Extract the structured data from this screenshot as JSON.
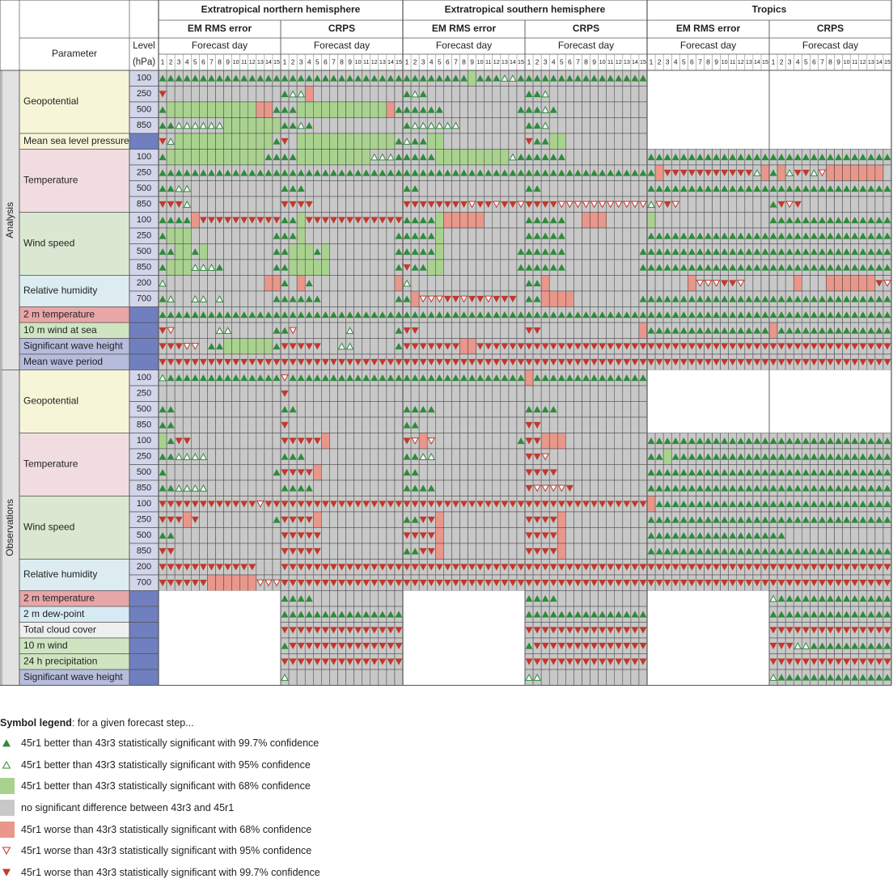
{
  "chart_data": {
    "type": "table",
    "title": "",
    "regions": [
      "Extratropical northern hemisphere",
      "Extratropical southern hemisphere",
      "Tropics"
    ],
    "scores": [
      "EM RMS error",
      "CRPS"
    ],
    "forecast_day_label": "Forecast day",
    "forecast_days": [
      "1",
      "2",
      "3",
      "4",
      "5",
      "6",
      "7",
      "8",
      "9",
      "10",
      "11",
      "12",
      "13",
      "14",
      "15"
    ],
    "param_header": "Parameter",
    "level_header": [
      "Level",
      "(hPa)"
    ],
    "sections": [
      {
        "name": "Analysis",
        "params": [
          {
            "name": "Geopotential",
            "levels": [
              "100",
              "250",
              "500",
              "850"
            ]
          },
          {
            "name": "Mean sea level pressure",
            "levels": [
              ""
            ]
          },
          {
            "name": "Temperature",
            "levels": [
              "100",
              "250",
              "500",
              "850"
            ]
          },
          {
            "name": "Wind speed",
            "levels": [
              "100",
              "250",
              "500",
              "850"
            ]
          },
          {
            "name": "Relative humidity",
            "levels": [
              "200",
              "700"
            ]
          },
          {
            "name": "2 m temperature",
            "levels": [
              ""
            ]
          },
          {
            "name": "10 m wind at sea",
            "levels": [
              ""
            ]
          },
          {
            "name": "Significant wave height",
            "levels": [
              ""
            ]
          },
          {
            "name": "Mean wave period",
            "levels": [
              ""
            ]
          }
        ]
      },
      {
        "name": "Observations",
        "params": [
          {
            "name": "Geopotential",
            "levels": [
              "100",
              "250",
              "500",
              "850"
            ]
          },
          {
            "name": "Temperature",
            "levels": [
              "100",
              "250",
              "500",
              "850"
            ]
          },
          {
            "name": "Wind speed",
            "levels": [
              "100",
              "250",
              "500",
              "850"
            ]
          },
          {
            "name": "Relative humidity",
            "levels": [
              "200",
              "700"
            ]
          },
          {
            "name": "2 m temperature",
            "levels": [
              ""
            ]
          },
          {
            "name": "2 m dew-point",
            "levels": [
              ""
            ]
          },
          {
            "name": "Total cloud cover",
            "levels": [
              ""
            ]
          },
          {
            "name": "10 m wind",
            "levels": [
              ""
            ]
          },
          {
            "name": "24 h precipitation",
            "levels": [
              ""
            ]
          },
          {
            "name": "Significant wave height",
            "levels": [
              ""
            ]
          }
        ]
      }
    ],
    "symbol_codes": {
      "A": "better 99.7%",
      "a": "better 95%",
      "g": "better 68%",
      "n": "no significant difference",
      "r": "worse 68%",
      "v": "worse 95%",
      "V": "worse 99.7%",
      "-": "not available"
    },
    "grid_rows": [
      "AAAAAAAAAAAAAAA AAAAAAAAAAAAAAA AAAAAAAAgAAAaaA AAAAAAAAAAAAAAA --------------- ---------------",
      "Vnnnnnnnnnnnnnn AaarnnnnnnnnnnN AaAnnnnnnnnnnnn AAannnnnnnnnnnn --------------- ---------------",
      "AgggggggggggrrA AAgggggggggggrA AAAAAnnnnnnnnnA AAaAnnnnnnnnnnn --------------- ---------------",
      "AAaaaaaaggggggg AAaAnnnnnnnnnnn Aaaaaaannnnnnnn AAannnnnnnnnnnn --------------- ---------------",
      "VaggggggggggggA VnggggggggggggA aAAggnnnnnnnnnn VAAggnnnnnnnnnn --------------- ---------------",
      "AggggggggggggAA AAgggggggggaaaA AAAAgggggggggaA AAAAAnnnnnnnnnn AAAAAAAAAAAAAAA AAAAAAAAAAAAAAA",
      "AAAAAAAAAAAAAAA AAAAAAAAAAAAAAA AAAAAAAAAAAAAAA AAAAAAAAAAAAAAA ArVVVVVVVVVVVar AraVVavrrrrrrrn",
      "AAaannnnnnnnnnn AAAnnnnnnnnnnnn AAnnnnnnnnnnnnn AAnnnnnnnnnnnnn AAAAAAAAAAAAAAA AAAAAAAAAAAAAAA",
      "VVVannnnnnnnnnn VVVVnnnnnnnnnnn VVVVVVVVvVVvVVv VVVVvvvvvvvvvvv avVvnnnnnnnnnnn AVvVnnnnnnnnnnn",
      "AAAArVVVVVVVVVV AAgVVVVVVVVVVVV AAAAgrrrrrnnnnn AAAAAnnrrrnnnnn gnnnnnnnnnnnnnn AAAAAAAAAAAAAAA",
      "AgggnnnnnnnnnnA AAgnnnnnnnnnnnA AAAAgnnnnnnnnnn AAAAAnnnnnnnnnn AAAAAAAAAAAAAAA AAAAAAAAAAAAAAA",
      "AAggAgnnnnnnnnA AgggAgnnnnnnnnA AAAAgnnnnnnnnnA AAAAAnnnnnnnnnA AAAAAAAAAAAAAAA AAAAAAAAAAAAAAA",
      "AgggaaaAnnnnnnA AgggggnnnnnnnnA VAAggnnnnnnnnnA AAAAAnnnnnnnnnA AAAAAAAAAAAAAAA AAAAAAAAAAAAAAA",
      "annnnnnnnnnnnrr AnrAnnnnnnnnnnr annnnnnnnnnnnnn AArnnnnnnnnnnnn nnnnnrvvvVVvnnn nnnrnnnrrrrrrVv",
      "AannaanannnnnnA AAAAAnnnnnnnnnA ArvvvVVvVVvVVVn AArrrrnnnnnnnnA AAAAAAAAAAAAAAA AAAAAAAAAAAAAAA",
      "AAAAAAAAAAAAAAA AAAAAAAAAAAAAAA AAAAAAAAAAAAAAA AAAAAAAAAAAAAAA AAAAAAAAAAAAAAA AAAAAAAAAAAAAAA",
      "VvnnnnnaannnnnA AvnnnnnnannnnnA VVnnnnnnnnnnnnn VVnnnnnnnnnnnnr AAAAAAAAAAAAAAA rAAAAAAAAAAAAAA",
      "VVVvvnAAggggggA VVVVVnnaannnnnA VVVVVVVrrVVVVVV VVVVVVVVVVVVVVV VVVVVVVVVVVVVVV VVVVVVVVVVVVVVV",
      "VVVVVVVVVVVVVVV VVVVVVVVVVVVVVV VVVVVVVVVVVVVVV VVVVVVVVVVVVVVV VVVVVVVVVVVVVVV VVVVVVVVVVVVVVV",
      "aAAAAAAAAAAAAAA vAAAAAAAAAAAAAA AAAAAAAAAAAAAAA rAAAAAAAAAAAAAA --------------- ---------------",
      "nnnnnnnnnnnnnnn Vnnnnnnnnnnnnnn nnnnnnnnnnnnnnn nnnnnnnnnnnnnnn --------------- ---------------",
      "AAnnnnnnnnnnnnn AAnnnnnnnnnnnnn AAAAnnnnnnnnnnn AAAAnnnnnnnnnnn --------------- ---------------",
      "AAnnnnnnnnnnnnn Vnnnnnnnnnnnnnn AAnnnnnnnnnnnnn VVnnnnnnnnnnnnn --------------- ---------------",
      "gAVVnnnnnnnnnnn VVVVVrnnnnnnnnn VvrvnnnnnnnnnnA VVrrrnnnnnnnnnn AAAAAAAAAAAAAAA AAAAAAAAAAAAAAA",
      "AAaaaannnnnnnnn AAAnnnnnnnnnnnn AAaannnnnnnnnnn VVvnnnnnnnnnnnn AAgAAAAAAAAAAAA AAAAAAAAAAAAAAA",
      "AnnnnnnnnnnnnnA VVVVrnnnnnnnnnn AAnnnnnnnnnnnnn VVVVnnnnnnnnnnn AAAAAAAAAAAAAAA AAAAAAAAAAAAAAA",
      "AAaaaannnnnnnnn AAAAnnnnnnnnnnn AAAAnnnnnnnnnnn VvvvvVnnnnnnnnn AAAAAAAAAAAAAAA AAAAAAAAAAAAAAA",
      "VVVVVVVVVVVVvVV VVVVVVVVVVVVVVV VVVVVVVVVVVVVVV VVVVVVVVVVVVVVV rAAAAAAAAAAAAAA AAAAAAAAAAAAAAA",
      "VVVrVnnnnnnnnnA VVVVrnnnnnnnnnn AAVVrnnnnnnnnnn VVVVrnnnnnnnnnn AAAAAAAAAAAAAAA AAAAAAAAAAAAAAA",
      "AAnnnnnnnnnnnnn VVVVVnnnnnnnnnn VVVVrnnnnnnnnnn VVVVrnnnnnnnnnn AAAAAAAAAAAAAAA AAnnnnnnnnnnnnn",
      "VVnnnnnnnnnnnnn VVVVVnnnnnnnnnn AAVVrnnnnnnnnnn VVVVrnnnnnnnnnn AAAAAAAAAAAAAAA AAAAAAAAAAAAAAA",
      "VVVVVVVVVVVVnnn VVVVVVVVVVVVVVV VVVVVVVVVVVVVVV VVVVVVVVVVVVVVV VVVVVVVVVVVVVVV VVVVVVVVVVVVVVV",
      "VVVVVVrrrrrrvvv VVVVVVVVVVVVVVV VVVVVVVVVVVVVVV VVVVVVVVVVVVVVV VVVVVVVVVVVVVVV VVVVVVVVVVVVVVV",
      "--------------- AAAAnnnnnnnnnnn --------------- AAAAnnnnnnnnnnn --------------- aAAAAAAAAAAAAAA",
      "--------------- AAAAAAAAAAAAAAA --------------- AAAAAAAAAAAAAAA --------------- AAAAAAAAAAAAAAA",
      "--------------- VVVVVVVVVVVVVVV --------------- VVVVVVVVVVVVVVV --------------- VVVVVVVVVVVVVVV",
      "--------------- AVVVVVVVVVVVVVV --------------- AVVVVVVVVVVVVVV --------------- VVVaaAAAAAAAAAA",
      "--------------- VVVVVVVVVVVVVVV --------------- VVVVVVVVVVVVVVV --------------- VVVVVVVVVVVVVVV",
      "--------------- annnnnnnnnnnnnn --------------- aannnnnnnnnnnnn --------------- aAAAAAAAAAAAAAA"
    ]
  },
  "legend": {
    "title_bold": "Symbol legend",
    "title_rest": ": for a given forecast step...",
    "items": [
      {
        "symbol": "A",
        "label": "45r1 better than 43r3 statistically significant with 99.7% confidence"
      },
      {
        "symbol": "a",
        "label": "45r1 better than 43r3 statistically significant with 95% confidence"
      },
      {
        "symbol": "g",
        "label": "45r1 better than 43r3 statistically significant with 68% confidence"
      },
      {
        "symbol": "n",
        "label": "no significant difference between 43r3 and 45r1"
      },
      {
        "symbol": "r",
        "label": "45r1 worse than 43r3 statistically significant with 68% confidence"
      },
      {
        "symbol": "v",
        "label": "45r1 worse than 43r3 statistically significant with 95% confidence"
      },
      {
        "symbol": "V",
        "label": "45r1 worse than 43r3 statistically significant with 99.7% confidence"
      }
    ]
  },
  "colors": {
    "better_fill": "#a9d28f",
    "worse_fill": "#e8978a",
    "nodiff_fill": "#c8c8c8",
    "better_symbol": "#2e8b3a",
    "worse_symbol": "#c0392b",
    "level_cell_fill": "#d3d6ea",
    "level_blank_fill": "#6f7fbf",
    "section_fill": "#e2e2e2",
    "param_fills": {
      "Geopotential": "#f6f5d8",
      "Mean sea level pressure": "#f6f5d8",
      "Temperature": "#f1dde0",
      "Wind speed": "#dbe8d1",
      "Relative humidity": "#dcecf1",
      "2 m temperature": "#e8a6a6",
      "10 m wind at sea": "#cfe5c1",
      "Significant wave height": "#b6bcdc",
      "Mean wave period": "#b6bcdc",
      "2 m dew-point": "#d6eaf3",
      "Total cloud cover": "#efefef",
      "10 m wind": "#cfe5c1",
      "24 h precipitation": "#cfe5c1"
    }
  }
}
